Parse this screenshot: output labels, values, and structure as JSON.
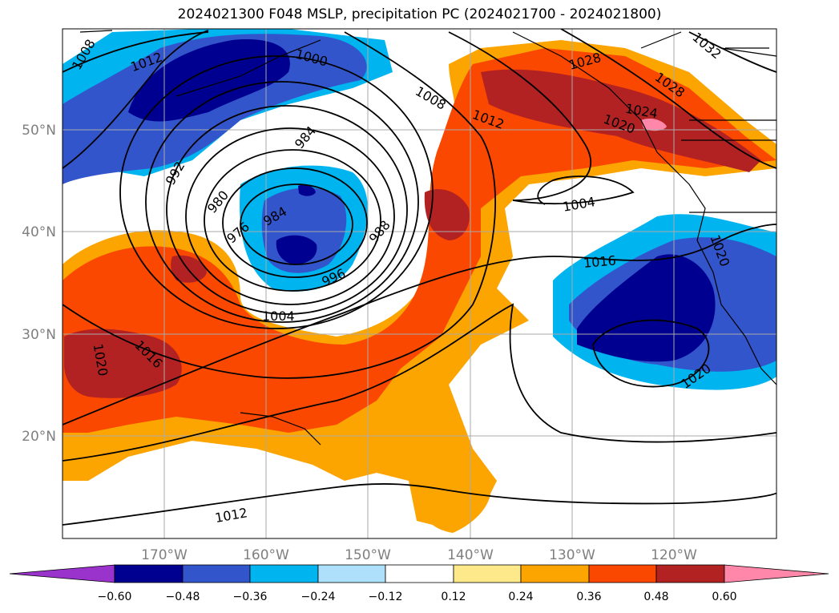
{
  "title": "2024021300 F048 MSLP, precipitation PC (2024021700 - 2024021800)",
  "lat_labels": [
    "50°N",
    "40°N",
    "30°N",
    "20°N"
  ],
  "lon_labels": [
    "170°W",
    "160°W",
    "150°W",
    "140°W",
    "130°W",
    "120°W"
  ],
  "isobar_labels": [
    "1008",
    "1012",
    "1000",
    "984",
    "1008",
    "1012",
    "1028",
    "1032",
    "1028",
    "1024",
    "1020",
    "1004",
    "992",
    "980",
    "976",
    "984",
    "988",
    "996",
    "1004",
    "1016",
    "1020",
    "1020",
    "1020",
    "1016",
    "1012"
  ],
  "colorbar": {
    "colors": [
      "#9933cc",
      "#000090",
      "#3355cc",
      "#00b4f0",
      "#aee0fb",
      "#ffffff",
      "#fde98a",
      "#fca400",
      "#fa4800",
      "#b22222",
      "#ff88aa"
    ],
    "ticks": [
      "−0.60",
      "−0.48",
      "−0.36",
      "−0.24",
      "−0.12",
      "0.12",
      "0.24",
      "0.36",
      "0.48",
      "0.60"
    ]
  },
  "legend_colors": {
    "dark_blue": "#000090",
    "mid_blue": "#3355cc",
    "light_blue": "#00b4f0",
    "pale_blue": "#aee0fb",
    "yellow": "#fde98a",
    "orange": "#fca400",
    "red_orange": "#fa4800",
    "dark_red": "#b22222",
    "pink": "#ff88aa"
  }
}
